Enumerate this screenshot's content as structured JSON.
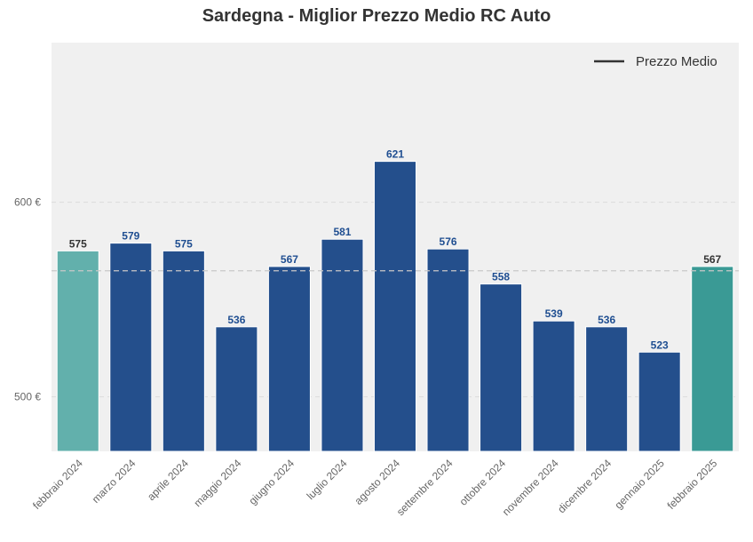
{
  "chart_data": {
    "type": "bar",
    "title": "Sardegna - Miglior Prezzo Medio RC Auto",
    "categories": [
      "febbraio 2024",
      "marzo 2024",
      "aprile 2024",
      "maggio 2024",
      "giugno 2024",
      "luglio 2024",
      "agosto 2024",
      "settembre 2024",
      "ottobre 2024",
      "novembre 2024",
      "dicembre 2024",
      "gennaio 2025",
      "febbraio 2025"
    ],
    "values": [
      575,
      579,
      575,
      536,
      567,
      581,
      621,
      576,
      558,
      539,
      536,
      523,
      567
    ],
    "data_labels": [
      "575",
      "579",
      "575",
      "536",
      "567",
      "581",
      "621",
      "576",
      "558",
      "539",
      "536",
      "523",
      "567"
    ],
    "bar_colors": [
      "#62b0ac",
      "#244f8c",
      "#244f8c",
      "#244f8c",
      "#244f8c",
      "#244f8c",
      "#244f8c",
      "#244f8c",
      "#244f8c",
      "#244f8c",
      "#244f8c",
      "#244f8c",
      "#3a9a95"
    ],
    "label_colors": [
      "#333333",
      "#1f4e91",
      "#1f4e91",
      "#1f4e91",
      "#1f4e91",
      "#1f4e91",
      "#1f4e91",
      "#1f4e91",
      "#1f4e91",
      "#1f4e91",
      "#1f4e91",
      "#1f4e91",
      "#333333"
    ],
    "reference_line": {
      "name": "Prezzo Medio",
      "value": 564.8,
      "color": "#c8c8c8",
      "style": "dashed"
    },
    "y_ticks": [
      500,
      600
    ],
    "y_tick_labels": [
      "500 €",
      "600 €"
    ],
    "ylim": [
      472,
      682
    ],
    "xlabel": "",
    "ylabel": "",
    "grid": true,
    "legend": {
      "entries": [
        "Prezzo Medio"
      ],
      "placement": "top-right",
      "line_color": "#333333"
    },
    "background_color": "#f0f0f0"
  }
}
